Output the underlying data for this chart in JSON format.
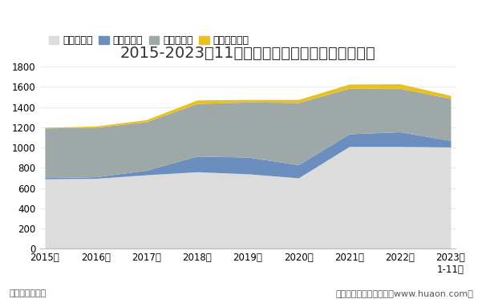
{
  "title": "2015-2023年11月湖南省各发电类型发电量统计图",
  "xlabel_unit": "单位：亿千瓦时",
  "footer": "制图：华经产业研究院（www.huaon.com）",
  "years": [
    "2015年",
    "2016年",
    "2017年",
    "2018年",
    "2019年",
    "2020年",
    "2021年",
    "2022年",
    "2023年\n1-11月"
  ],
  "x_values": [
    0,
    1,
    2,
    3,
    4,
    5,
    6,
    7,
    8
  ],
  "火力发电量": [
    690,
    695,
    730,
    760,
    740,
    700,
    1010,
    1010,
    1005
  ],
  "风力发电量": [
    12,
    15,
    45,
    155,
    165,
    130,
    125,
    145,
    65
  ],
  "水力发电量": [
    490,
    490,
    480,
    520,
    545,
    615,
    450,
    430,
    415
  ],
  "太阳能发电量": [
    8,
    12,
    20,
    35,
    25,
    30,
    42,
    45,
    30
  ],
  "colors": {
    "火力发电量": "#dcdcdc",
    "风力发电量": "#6c8ebf",
    "水力发电量": "#9fa8a8",
    "太阳能发电量": "#e8c020"
  },
  "ylim": [
    0,
    1800
  ],
  "yticks": [
    0,
    200,
    400,
    600,
    800,
    1000,
    1200,
    1400,
    1600,
    1800
  ],
  "background_color": "#ffffff",
  "title_fontsize": 14,
  "legend_fontsize": 9,
  "tick_fontsize": 8.5,
  "unit_fontsize": 8
}
